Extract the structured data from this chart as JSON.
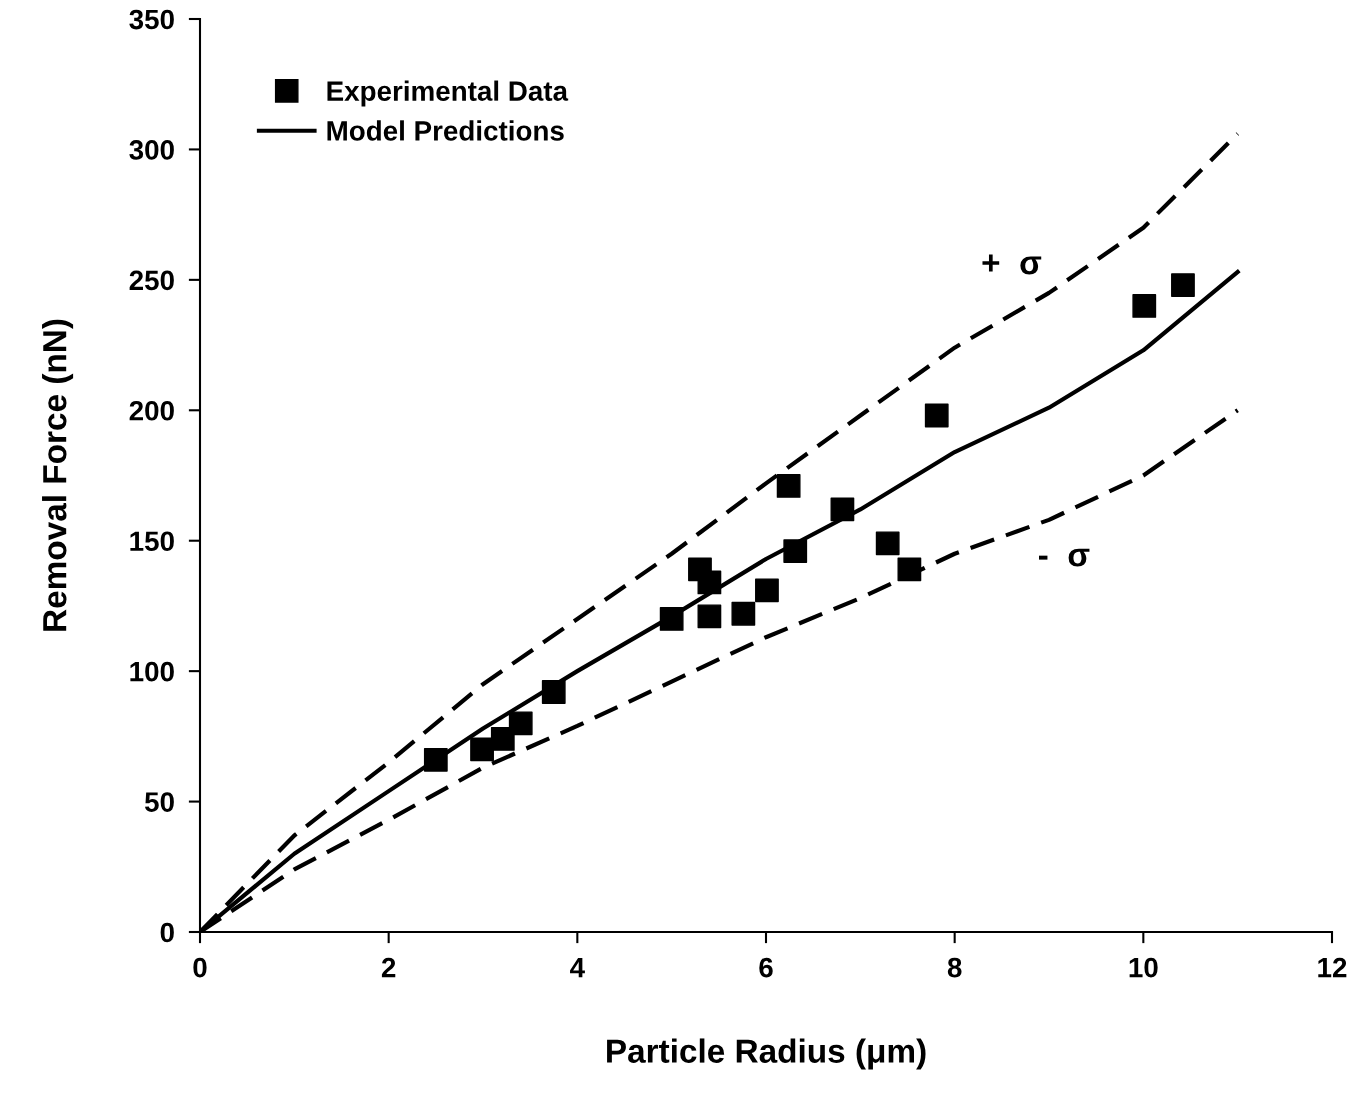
{
  "chart_data": {
    "type": "line",
    "xlabel": "Particle Radius (μm)",
    "ylabel": "Removal Force (nN)",
    "xlim": [
      0,
      12
    ],
    "xticks": [
      0,
      2,
      4,
      6,
      8,
      10,
      12
    ],
    "ylim": [
      0,
      350
    ],
    "yticks": [
      0,
      50,
      100,
      150,
      200,
      250,
      300,
      350
    ],
    "grid": false,
    "legend": "top left",
    "series": [
      {
        "name": "Experimental Data",
        "type": "scatter",
        "marker": "square",
        "color": "#000000",
        "x": [
          2.5,
          2.99,
          3.21,
          3.4,
          3.75,
          5.0,
          5.3,
          5.4,
          5.4,
          5.76,
          6.01,
          6.24,
          6.31,
          6.81,
          7.29,
          7.52,
          7.81,
          10.01,
          10.42
        ],
        "values": [
          66,
          70,
          74,
          80,
          92,
          120,
          139,
          134,
          121,
          122,
          131,
          171,
          146,
          162,
          149,
          139,
          198,
          240,
          248
        ]
      },
      {
        "name": "Model Predictions",
        "line_style": "solid",
        "marker": "none",
        "color": "#000000",
        "x": [
          0,
          1,
          2,
          3,
          4,
          5,
          6,
          7,
          8,
          9,
          10,
          11
        ],
        "values": [
          0,
          30,
          54,
          78,
          100,
          121,
          143,
          162,
          184,
          201,
          223,
          253
        ]
      },
      {
        "line_style": "dashed",
        "marker": "none",
        "color": "#000000",
        "x": [
          0,
          1,
          2,
          3,
          4,
          5,
          6,
          7,
          8,
          9,
          10,
          11
        ],
        "values": [
          0,
          37,
          65,
          95,
          120,
          145,
          172,
          198,
          224,
          245,
          270,
          306
        ]
      },
      {
        "line_style": "dashed",
        "marker": "none",
        "color": "#000000",
        "x": [
          0,
          1,
          2,
          3,
          4,
          5,
          6,
          7,
          8,
          9,
          10,
          11
        ],
        "values": [
          0,
          24,
          43,
          63,
          79,
          96,
          113,
          128,
          145,
          158,
          175,
          200
        ]
      }
    ],
    "annotations": [
      "+  σ",
      "-  σ"
    ]
  }
}
